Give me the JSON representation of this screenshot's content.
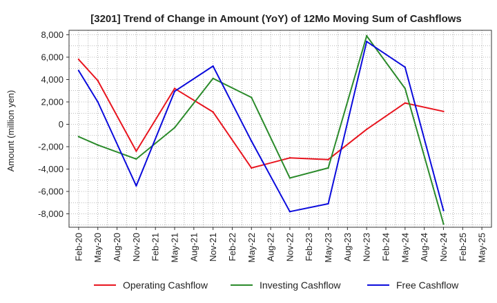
{
  "chart_data": {
    "type": "line",
    "title": "[3201]  Trend of Change in Amount (YoY) of 12Mo Moving Sum of Cashflows",
    "xlabel": "",
    "ylabel": "Amount (million yen)",
    "ylim": [
      -9200,
      8400
    ],
    "yticks": [
      -8000,
      -6000,
      -4000,
      -2000,
      0,
      2000,
      4000,
      6000,
      8000
    ],
    "ytick_labels": [
      "-8,000",
      "-6,000",
      "-4,000",
      "-2,000",
      "0",
      "2,000",
      "4,000",
      "6,000",
      "8,000"
    ],
    "categories": [
      "Feb-20",
      "May-20",
      "Aug-20",
      "Nov-20",
      "Feb-21",
      "May-21",
      "Aug-21",
      "Nov-21",
      "Feb-22",
      "May-22",
      "Aug-22",
      "Nov-22",
      "Feb-23",
      "May-23",
      "Aug-23",
      "Nov-23",
      "Feb-24",
      "May-24",
      "Aug-24",
      "Nov-24",
      "Feb-25",
      "May-25"
    ],
    "grid": true,
    "legend_position": "bottom",
    "series": [
      {
        "name": "Operating Cashflow",
        "color": "#e8141e",
        "values": [
          5800,
          3900,
          null,
          -2400,
          null,
          3200,
          null,
          1100,
          null,
          -3900,
          null,
          -3000,
          null,
          -3150,
          null,
          -450,
          null,
          1900,
          null,
          1150,
          null,
          null
        ]
      },
      {
        "name": "Investing Cashflow",
        "color": "#2a8a2a",
        "values": [
          -1100,
          -1850,
          null,
          -3100,
          null,
          -300,
          null,
          4100,
          null,
          2400,
          null,
          -4800,
          null,
          -3900,
          null,
          7900,
          null,
          3200,
          null,
          -8900,
          null,
          null
        ]
      },
      {
        "name": "Free Cashflow",
        "color": "#0a0adc",
        "values": [
          4800,
          2000,
          null,
          -5500,
          null,
          2950,
          null,
          5200,
          null,
          -1500,
          null,
          -7800,
          null,
          -7100,
          null,
          7400,
          null,
          5100,
          null,
          -7700,
          null,
          null
        ]
      }
    ]
  }
}
